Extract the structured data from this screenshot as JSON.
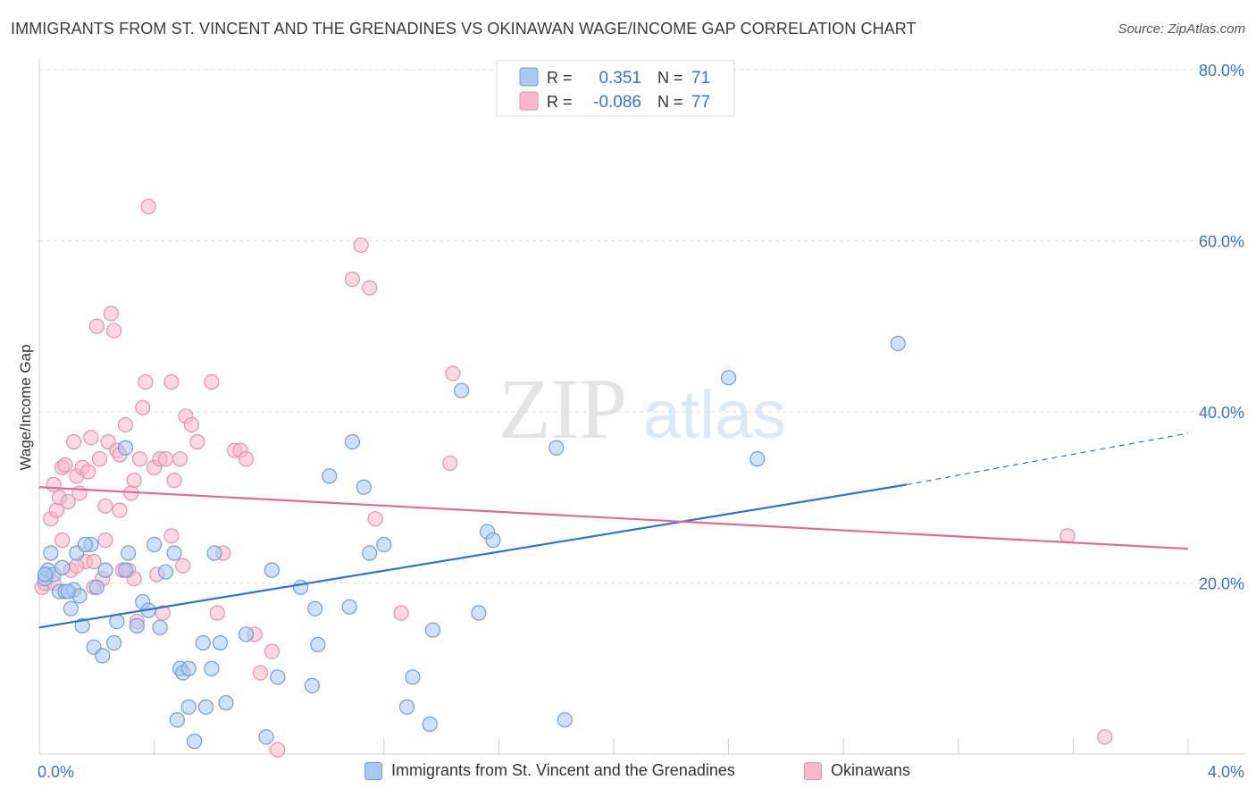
{
  "header": {
    "title": "IMMIGRANTS FROM ST. VINCENT AND THE GRENADINES VS OKINAWAN WAGE/INCOME GAP CORRELATION CHART",
    "source": "Source: ZipAtlas.com"
  },
  "watermark": {
    "zip": "ZIP",
    "atlas": "atlas"
  },
  "legend_top": {
    "rows": [
      {
        "r_label": "R =",
        "r_value": "0.351",
        "n_label": "N =",
        "n_value": "71"
      },
      {
        "r_label": "R =",
        "r_value": "-0.086",
        "n_label": "N =",
        "n_value": "77"
      }
    ]
  },
  "legend_bottom": {
    "items": [
      {
        "label": "Immigrants from St. Vincent and the Grenadines"
      },
      {
        "label": "Okinawans"
      }
    ]
  },
  "colors": {
    "blue_fill": "#a9c8f0",
    "blue_stroke": "#6a9fdc",
    "blue_line": "#2f73d0",
    "pink_fill": "#f7b8cb",
    "pink_stroke": "#ea8fab",
    "pink_line": "#e06a94",
    "axis_text": "#3a73c9",
    "grid": "#dcdcdc"
  },
  "chart_data": {
    "type": "scatter",
    "ylabel": "Wage/Income Gap",
    "xlim": [
      0,
      4
    ],
    "ylim": [
      0,
      80
    ],
    "x_tick_labels": [
      "0.0%",
      "4.0%"
    ],
    "y_ticks": [
      20,
      40,
      60,
      80
    ],
    "y_tick_labels": [
      "20.0%",
      "40.0%",
      "60.0%",
      "80.0%"
    ],
    "grid": true,
    "series": [
      {
        "name": "Immigrants from St. Vincent and the Grenadines",
        "color": "blue",
        "trend": {
          "x0": 0.0,
          "y0": 14.8,
          "x1": 3.02,
          "y1": 31.5,
          "dash_to_x": 4.0,
          "dash_to_y": 37.5
        },
        "points": [
          [
            0.02,
            20.5
          ],
          [
            0.03,
            21.5
          ],
          [
            0.04,
            23.5
          ],
          [
            0.05,
            21.0
          ],
          [
            0.07,
            19.0
          ],
          [
            0.08,
            21.8
          ],
          [
            0.09,
            19.0
          ],
          [
            0.11,
            17.0
          ],
          [
            0.12,
            19.2
          ],
          [
            0.13,
            23.5
          ],
          [
            0.14,
            18.5
          ],
          [
            0.15,
            15.0
          ],
          [
            0.18,
            24.5
          ],
          [
            0.19,
            12.5
          ],
          [
            0.2,
            19.5
          ],
          [
            0.22,
            11.5
          ],
          [
            0.23,
            21.5
          ],
          [
            0.26,
            13.0
          ],
          [
            0.27,
            15.5
          ],
          [
            0.3,
            21.5
          ],
          [
            0.31,
            23.5
          ],
          [
            0.34,
            15.0
          ],
          [
            0.36,
            17.8
          ],
          [
            0.38,
            16.8
          ],
          [
            0.4,
            24.5
          ],
          [
            0.42,
            14.8
          ],
          [
            0.44,
            21.3
          ],
          [
            0.47,
            23.5
          ],
          [
            0.49,
            10.0
          ],
          [
            0.5,
            9.5
          ],
          [
            0.52,
            10.0
          ],
          [
            0.52,
            5.5
          ],
          [
            0.54,
            1.5
          ],
          [
            0.57,
            13.0
          ],
          [
            0.58,
            5.5
          ],
          [
            0.6,
            10.0
          ],
          [
            0.61,
            23.5
          ],
          [
            0.63,
            13.0
          ],
          [
            0.65,
            6.0
          ],
          [
            0.72,
            14.0
          ],
          [
            0.79,
            2.0
          ],
          [
            0.81,
            21.5
          ],
          [
            0.83,
            9.0
          ],
          [
            0.91,
            19.5
          ],
          [
            0.95,
            8.0
          ],
          [
            0.96,
            17.0
          ],
          [
            0.97,
            12.8
          ],
          [
            1.01,
            32.5
          ],
          [
            1.08,
            17.2
          ],
          [
            1.09,
            36.5
          ],
          [
            1.13,
            31.2
          ],
          [
            1.15,
            23.5
          ],
          [
            1.2,
            24.5
          ],
          [
            1.28,
            5.5
          ],
          [
            1.3,
            9.0
          ],
          [
            1.36,
            3.5
          ],
          [
            1.37,
            14.5
          ],
          [
            1.47,
            42.5
          ],
          [
            1.53,
            16.5
          ],
          [
            1.56,
            26.0
          ],
          [
            1.58,
            25.0
          ],
          [
            1.8,
            35.8
          ],
          [
            1.83,
            4.0
          ],
          [
            2.4,
            44.0
          ],
          [
            2.5,
            34.5
          ],
          [
            2.99,
            48.0
          ],
          [
            0.02,
            21.0
          ],
          [
            0.1,
            19.0
          ],
          [
            0.16,
            24.5
          ],
          [
            0.3,
            35.8
          ],
          [
            0.48,
            4.0
          ]
        ]
      },
      {
        "name": "Okinawans",
        "color": "pink",
        "trend": {
          "x0": 0.0,
          "y0": 31.2,
          "x1": 4.0,
          "y1": 24.0
        },
        "points": [
          [
            0.01,
            19.5
          ],
          [
            0.02,
            20.0
          ],
          [
            0.03,
            21.0
          ],
          [
            0.04,
            27.5
          ],
          [
            0.05,
            31.5
          ],
          [
            0.06,
            28.5
          ],
          [
            0.07,
            30.0
          ],
          [
            0.08,
            33.5
          ],
          [
            0.09,
            33.8
          ],
          [
            0.1,
            29.5
          ],
          [
            0.11,
            21.5
          ],
          [
            0.12,
            36.5
          ],
          [
            0.13,
            32.5
          ],
          [
            0.14,
            30.5
          ],
          [
            0.15,
            33.5
          ],
          [
            0.16,
            22.5
          ],
          [
            0.17,
            33.0
          ],
          [
            0.18,
            37.0
          ],
          [
            0.19,
            19.5
          ],
          [
            0.2,
            50.0
          ],
          [
            0.21,
            34.5
          ],
          [
            0.22,
            20.5
          ],
          [
            0.23,
            29.0
          ],
          [
            0.24,
            36.5
          ],
          [
            0.25,
            51.5
          ],
          [
            0.26,
            49.5
          ],
          [
            0.27,
            35.5
          ],
          [
            0.28,
            35.0
          ],
          [
            0.29,
            21.5
          ],
          [
            0.3,
            38.5
          ],
          [
            0.31,
            21.5
          ],
          [
            0.32,
            30.5
          ],
          [
            0.33,
            32.0
          ],
          [
            0.34,
            15.5
          ],
          [
            0.35,
            34.5
          ],
          [
            0.36,
            40.5
          ],
          [
            0.37,
            43.5
          ],
          [
            0.38,
            64.0
          ],
          [
            0.4,
            33.5
          ],
          [
            0.41,
            21.0
          ],
          [
            0.42,
            34.5
          ],
          [
            0.43,
            16.5
          ],
          [
            0.44,
            34.5
          ],
          [
            0.46,
            43.5
          ],
          [
            0.47,
            32.0
          ],
          [
            0.49,
            34.5
          ],
          [
            0.51,
            39.5
          ],
          [
            0.53,
            38.5
          ],
          [
            0.55,
            36.5
          ],
          [
            0.6,
            43.5
          ],
          [
            0.64,
            23.5
          ],
          [
            0.68,
            35.5
          ],
          [
            0.7,
            35.5
          ],
          [
            0.72,
            34.5
          ],
          [
            0.75,
            14.0
          ],
          [
            0.77,
            9.5
          ],
          [
            0.81,
            12.0
          ],
          [
            0.83,
            0.5
          ],
          [
            1.09,
            55.5
          ],
          [
            1.12,
            59.5
          ],
          [
            1.15,
            54.5
          ],
          [
            1.17,
            27.5
          ],
          [
            1.26,
            16.5
          ],
          [
            1.43,
            34.0
          ],
          [
            1.44,
            44.5
          ],
          [
            3.58,
            25.5
          ],
          [
            3.71,
            2.0
          ],
          [
            0.05,
            20.0
          ],
          [
            0.08,
            25.0
          ],
          [
            0.13,
            22.0
          ],
          [
            0.19,
            22.5
          ],
          [
            0.23,
            25.0
          ],
          [
            0.28,
            28.5
          ],
          [
            0.33,
            20.5
          ],
          [
            0.46,
            25.5
          ],
          [
            0.5,
            22.0
          ],
          [
            0.62,
            16.5
          ]
        ]
      }
    ]
  }
}
